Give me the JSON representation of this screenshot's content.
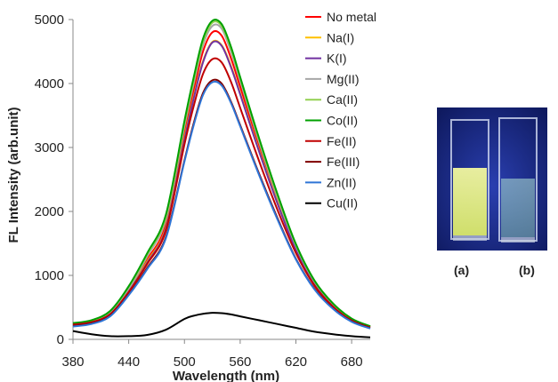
{
  "chart_data": {
    "type": "line",
    "title": "",
    "xlabel": "Wavelength (nm)",
    "ylabel": "FL Intensity (arb.unit)",
    "xlim": [
      380,
      700
    ],
    "ylim": [
      0,
      5000
    ],
    "x_ticks": [
      "380",
      "440",
      "500",
      "560",
      "620",
      "680"
    ],
    "y_ticks": [
      "0",
      "1000",
      "2000",
      "3000",
      "4000",
      "5000"
    ],
    "grid": false,
    "legend_position": "top-right",
    "x": [
      380,
      400,
      420,
      440,
      460,
      480,
      500,
      510,
      520,
      530,
      540,
      550,
      560,
      580,
      600,
      620,
      640,
      660,
      680,
      700
    ],
    "series": [
      {
        "name": "No metal",
        "color": "#ff0000",
        "values": [
          250,
          290,
          420,
          780,
          1250,
          1800,
          3250,
          3900,
          4500,
          4800,
          4750,
          4400,
          3950,
          3050,
          2200,
          1450,
          900,
          550,
          320,
          200
        ]
      },
      {
        "name": "Na(I)",
        "color": "#ffc000",
        "values": [
          240,
          280,
          410,
          760,
          1220,
          1750,
          3150,
          3800,
          4350,
          4650,
          4600,
          4280,
          3850,
          2970,
          2150,
          1420,
          880,
          540,
          310,
          195
        ]
      },
      {
        "name": "K(I)",
        "color": "#7030a0",
        "values": [
          235,
          275,
          400,
          750,
          1200,
          1730,
          3120,
          3770,
          4330,
          4640,
          4590,
          4260,
          3830,
          2950,
          2130,
          1400,
          870,
          530,
          305,
          190
        ]
      },
      {
        "name": "Mg(II)",
        "color": "#a6a6a6",
        "values": [
          240,
          285,
          420,
          790,
          1300,
          1880,
          3330,
          4000,
          4600,
          4900,
          4860,
          4500,
          4040,
          3100,
          2230,
          1460,
          900,
          550,
          320,
          200
        ]
      },
      {
        "name": "Ca(II)",
        "color": "#92d050",
        "values": [
          250,
          295,
          440,
          820,
          1330,
          1920,
          3380,
          4050,
          4650,
          4950,
          4900,
          4550,
          4080,
          3140,
          2260,
          1480,
          910,
          555,
          322,
          202
        ]
      },
      {
        "name": "Co(II)",
        "color": "#00a000",
        "values": [
          255,
          300,
          445,
          830,
          1350,
          1950,
          3420,
          4100,
          4700,
          4980,
          4930,
          4580,
          4100,
          3160,
          2280,
          1490,
          920,
          560,
          325,
          205
        ]
      },
      {
        "name": "Fe(II)",
        "color": "#c00000",
        "values": [
          230,
          270,
          395,
          740,
          1180,
          1700,
          3050,
          3650,
          4150,
          4380,
          4330,
          4030,
          3620,
          2800,
          2030,
          1350,
          840,
          510,
          295,
          185
        ]
      },
      {
        "name": "Fe(III)",
        "color": "#7f0000",
        "values": [
          210,
          250,
          370,
          700,
          1120,
          1600,
          2800,
          3380,
          3850,
          4050,
          4000,
          3720,
          3350,
          2600,
          1900,
          1260,
          790,
          480,
          280,
          175
        ]
      },
      {
        "name": "Zn(II)",
        "color": "#2e75d6",
        "values": [
          200,
          240,
          360,
          690,
          1100,
          1580,
          2780,
          3350,
          3820,
          4020,
          3970,
          3700,
          3330,
          2580,
          1880,
          1250,
          780,
          475,
          275,
          170
        ]
      },
      {
        "name": "Cu(II)",
        "color": "#000000",
        "values": [
          130,
          80,
          50,
          50,
          70,
          150,
          320,
          370,
          400,
          415,
          410,
          390,
          360,
          300,
          240,
          180,
          120,
          80,
          50,
          30
        ]
      }
    ]
  },
  "photo": {
    "captions": [
      "(a)",
      "(b)"
    ],
    "background_color": "#1a2b8a",
    "cuvette_a_liquid_color": "#e6f27a",
    "cuvette_b_liquid_color": "#9fc9c0"
  }
}
